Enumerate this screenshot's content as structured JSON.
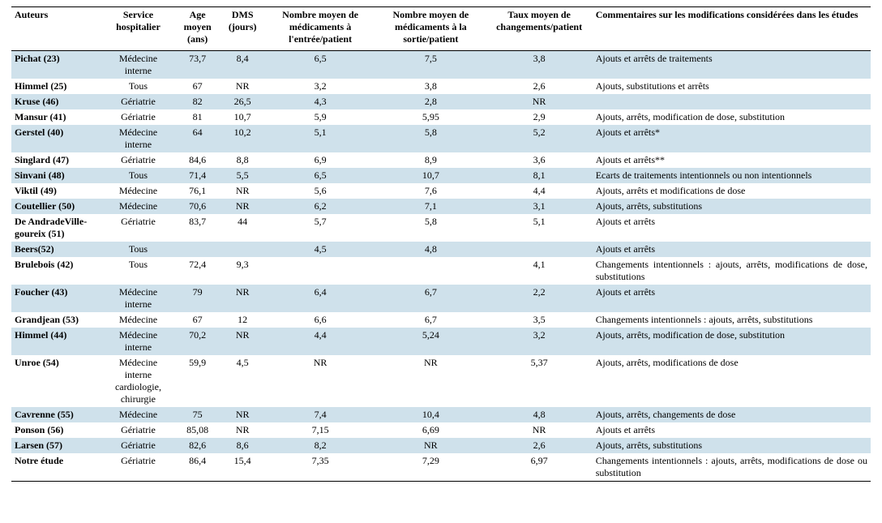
{
  "headers": [
    "Auteurs",
    "Service hospitalier",
    "Age moyen (ans)",
    "DMS (jours)",
    "Nombre moyen de médicaments à l'entrée/patient",
    "Nombre moyen de médicaments à la sortie/patient",
    "Taux moyen de changements/patient",
    "Commentaires sur les modifications considérées dans les études"
  ],
  "colors": {
    "stripe_even": "#cfe1eb",
    "stripe_odd": "#ffffff",
    "text": "#000000",
    "border": "#000000"
  },
  "column_align": [
    "left",
    "center",
    "center",
    "center",
    "center",
    "center",
    "center",
    "left"
  ],
  "rows": [
    {
      "author": "Pichat (23)",
      "service": "Médecine interne",
      "age": "73,7",
      "dms": "8,4",
      "entree": "6,5",
      "sortie": "7,5",
      "taux": "3,8",
      "comment": "Ajouts et arrêts de traitements",
      "justify": false
    },
    {
      "author": "Himmel (25)",
      "service": "Tous",
      "age": "67",
      "dms": "NR",
      "entree": "3,2",
      "sortie": "3,8",
      "taux": "2,6",
      "comment": "Ajouts, substitutions et arrêts",
      "justify": false
    },
    {
      "author": "Kruse (46)",
      "service": "Gériatrie",
      "age": "82",
      "dms": "26,5",
      "entree": "4,3",
      "sortie": "2,8",
      "taux": "NR",
      "comment": "",
      "justify": false
    },
    {
      "author": "Mansur (41)",
      "service": "Gériatrie",
      "age": "81",
      "dms": "10,7",
      "entree": "5,9",
      "sortie": "5,95",
      "taux": "2,9",
      "comment": "Ajouts, arrêts, modification de dose, substitution",
      "justify": false
    },
    {
      "author": "Gerstel (40)",
      "service": "Médecine interne",
      "age": "64",
      "dms": "10,2",
      "entree": "5,1",
      "sortie": "5,8",
      "taux": "5,2",
      "comment": "Ajouts et arrêts*",
      "justify": false
    },
    {
      "author": "Singlard (47)",
      "service": "Gériatrie",
      "age": "84,6",
      "dms": "8,8",
      "entree": "6,9",
      "sortie": "8,9",
      "taux": "3,6",
      "comment": "Ajouts et arrêts**",
      "justify": false
    },
    {
      "author": "Sinvani (48)",
      "service": "Tous",
      "age": "71,4",
      "dms": "5,5",
      "entree": "6,5",
      "sortie": "10,7",
      "taux": "8,1",
      "comment": "Ecarts de traitements intentionnels ou non intentionnels",
      "justify": true
    },
    {
      "author": "Viktil (49)",
      "service": "Médecine",
      "age": "76,1",
      "dms": "NR",
      "entree": "5,6",
      "sortie": "7,6",
      "taux": "4,4",
      "comment": "Ajouts, arrêts et modifications de dose",
      "justify": false
    },
    {
      "author": "Coutellier (50)",
      "service": "Médecine",
      "age": "70,6",
      "dms": "NR",
      "entree": "6,2",
      "sortie": "7,1",
      "taux": "3,1",
      "comment": "Ajouts, arrêts, substitutions",
      "justify": false
    },
    {
      "author": "De AndradeVille-goureix (51)",
      "service": "Gériatrie",
      "age": "83,7",
      "dms": "44",
      "entree": "5,7",
      "sortie": "5,8",
      "taux": "5,1",
      "comment": "Ajouts et arrêts",
      "justify": false
    },
    {
      "author": "Beers(52)",
      "service": "Tous",
      "age": "",
      "dms": "",
      "entree": "4,5",
      "sortie": "4,8",
      "taux": "",
      "comment": "Ajouts et arrêts",
      "justify": false
    },
    {
      "author": "Brulebois (42)",
      "service": "Tous",
      "age": "72,4",
      "dms": "9,3",
      "entree": "",
      "sortie": "",
      "taux": "4,1",
      "comment": "Changements intentionnels : ajouts, arrêts, modifications de dose, substitutions",
      "justify": true
    },
    {
      "author": "Foucher (43)",
      "service": "Médecine interne",
      "age": "79",
      "dms": "NR",
      "entree": "6,4",
      "sortie": "6,7",
      "taux": "2,2",
      "comment": "Ajouts et arrêts",
      "justify": false
    },
    {
      "author": "Grandjean (53)",
      "service": "Médecine",
      "age": "67",
      "dms": "12",
      "entree": "6,6",
      "sortie": "6,7",
      "taux": "3,5",
      "comment": "Changements intentionnels : ajouts, arrêts, substitutions",
      "justify": true
    },
    {
      "author": "Himmel (44)",
      "service": "Médecine interne",
      "age": "70,2",
      "dms": "NR",
      "entree": "4,4",
      "sortie": "5,24",
      "taux": "3,2",
      "comment": "Ajouts, arrêts, modification de dose, substitution",
      "justify": false
    },
    {
      "author": "Unroe (54)",
      "service": "Médecine interne cardiologie, chirurgie",
      "age": "59,9",
      "dms": "4,5",
      "entree": "NR",
      "sortie": "NR",
      "taux": "5,37",
      "comment": "Ajouts, arrêts, modifications de dose",
      "justify": false
    },
    {
      "author": "Cavrenne (55)",
      "service": "Médecine",
      "age": "75",
      "dms": "NR",
      "entree": "7,4",
      "sortie": "10,4",
      "taux": "4,8",
      "comment": "Ajouts, arrêts, changements de dose",
      "justify": false
    },
    {
      "author": "Ponson (56)",
      "service": "Gériatrie",
      "age": "85,08",
      "dms": "NR",
      "entree": "7,15",
      "sortie": "6,69",
      "taux": "NR",
      "comment": "Ajouts et arrêts",
      "justify": false
    },
    {
      "author": "Larsen (57)",
      "service": "Gériatrie",
      "age": "82,6",
      "dms": "8,6",
      "entree": "8,2",
      "sortie": "NR",
      "taux": "2,6",
      "comment": "Ajouts, arrêts, substitutions",
      "justify": false
    },
    {
      "author": "Notre étude",
      "service": "Gériatrie",
      "age": "86,4",
      "dms": "15,4",
      "entree": "7,35",
      "sortie": "7,29",
      "taux": "6,97",
      "comment": "Changements intentionnels : ajouts, arrêts, modifications de dose ou substitution",
      "justify": true
    }
  ]
}
